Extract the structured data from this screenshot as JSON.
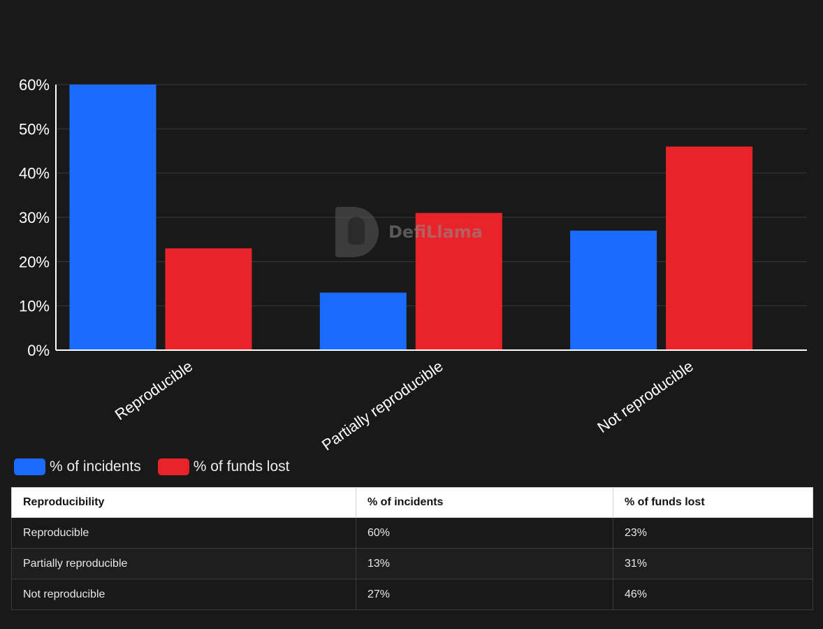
{
  "watermark": "DefiLlama",
  "chart_data": {
    "type": "bar",
    "categories": [
      "Reproducible",
      "Partially reproducible",
      "Not reproducible"
    ],
    "series": [
      {
        "name": "% of incidents",
        "values": [
          60,
          13,
          27
        ],
        "color": "#1b6bff"
      },
      {
        "name": "% of funds lost",
        "values": [
          23,
          31,
          46
        ],
        "color": "#e8242a"
      }
    ],
    "ylim": [
      0,
      60
    ],
    "yticks": [
      "0%",
      "10%",
      "20%",
      "30%",
      "40%",
      "50%",
      "60%"
    ],
    "grid": true,
    "legend": "bottom-left"
  },
  "table": {
    "headers": [
      "Reproducibility",
      "% of incidents",
      "% of funds lost"
    ],
    "rows": [
      [
        "Reproducible",
        "60%",
        "23%"
      ],
      [
        "Partially reproducible",
        "13%",
        "31%"
      ],
      [
        "Not reproducible",
        "27%",
        "46%"
      ]
    ]
  }
}
